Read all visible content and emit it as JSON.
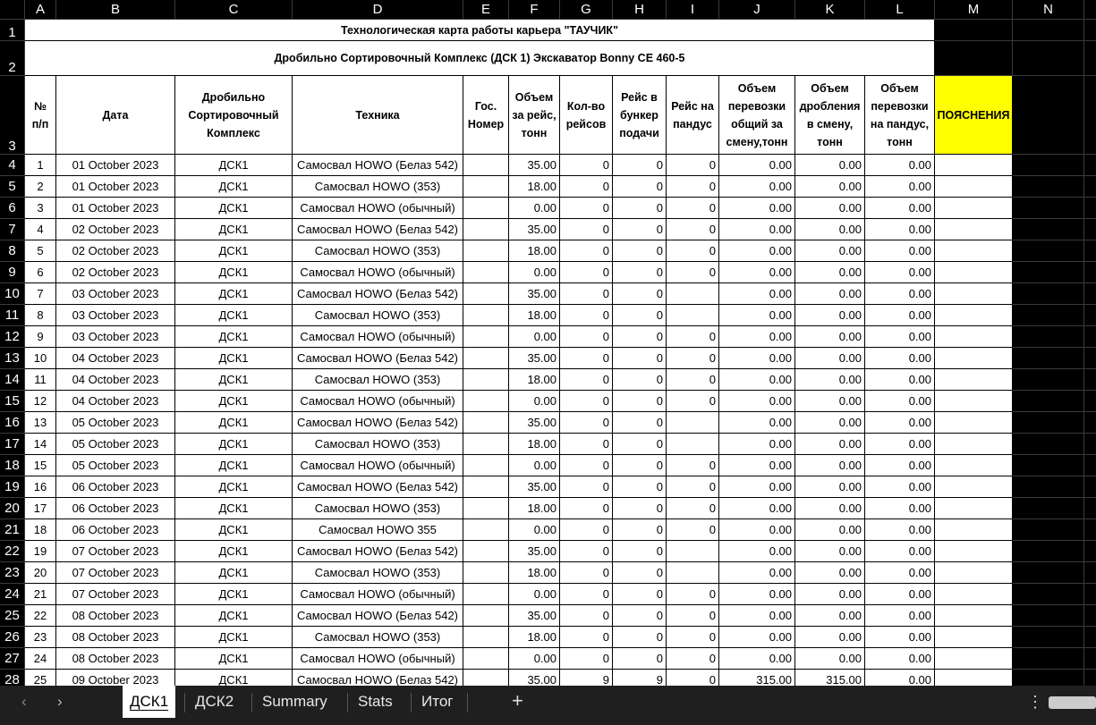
{
  "columns": [
    "A",
    "B",
    "C",
    "D",
    "E",
    "F",
    "G",
    "H",
    "I",
    "J",
    "K",
    "L",
    "M",
    "N"
  ],
  "row_numbers": [
    "1",
    "2",
    "3",
    "4",
    "5",
    "6",
    "7",
    "8",
    "9",
    "10",
    "11",
    "12",
    "13",
    "14",
    "15",
    "16",
    "17",
    "18",
    "19",
    "20",
    "21",
    "22",
    "23",
    "24",
    "25",
    "26",
    "27",
    "28"
  ],
  "title": "Технологическая карта работы карьера \"ТАУЧИК\"",
  "subtitle": "Дробильно Сортировочный Комплекс (ДСК 1) Экскаватор Bonny CE 460-5",
  "headers": [
    "№\nп/п",
    "Дата",
    "Дробильно\nСортировочный\nКомплекс",
    "Техника",
    "Гос.\nНомер",
    "Объем\nза рейс,\nтонн",
    "Кол-во\nрейсов",
    "Рейс в\nбункер\nподачи",
    "Рейс на\nпандус",
    "Объем\nперевозки\nобщий за\nсмену,тонн",
    "Объем\nдробления\nв смену,\nтонн",
    "Объем\nперевозки\nна пандус,\nтонн",
    "ПОЯСНЕНИЯ"
  ],
  "rows": [
    [
      "1",
      "01 October 2023",
      "ДСК1",
      "Самосвал HOWO (Белаз 542)",
      null,
      "35.00",
      "0",
      "0",
      "0",
      "0.00",
      "0.00",
      "0.00"
    ],
    [
      "2",
      "01 October 2023",
      "ДСК1",
      "Самосвал HOWO (353)",
      null,
      "18.00",
      "0",
      "0",
      "0",
      "0.00",
      "0.00",
      "0.00"
    ],
    [
      "3",
      "01 October 2023",
      "ДСК1",
      "Самосвал HOWO (обычный)",
      null,
      "0.00",
      "0",
      "0",
      "0",
      "0.00",
      "0.00",
      "0.00"
    ],
    [
      "4",
      "02 October 2023",
      "ДСК1",
      "Самосвал HOWO (Белаз 542)",
      null,
      "35.00",
      "0",
      "0",
      "0",
      "0.00",
      "0.00",
      "0.00"
    ],
    [
      "5",
      "02 October 2023",
      "ДСК1",
      "Самосвал HOWO (353)",
      null,
      "18.00",
      "0",
      "0",
      "0",
      "0.00",
      "0.00",
      "0.00"
    ],
    [
      "6",
      "02 October 2023",
      "ДСК1",
      "Самосвал HOWO (обычный)",
      null,
      "0.00",
      "0",
      "0",
      "0",
      "0.00",
      "0.00",
      "0.00"
    ],
    [
      "7",
      "03 October 2023",
      "ДСК1",
      "Самосвал HOWO (Белаз 542)",
      null,
      "35.00",
      "0",
      "0",
      null,
      "0.00",
      "0.00",
      "0.00"
    ],
    [
      "8",
      "03 October 2023",
      "ДСК1",
      "Самосвал HOWO (353)",
      null,
      "18.00",
      "0",
      "0",
      null,
      "0.00",
      "0.00",
      "0.00"
    ],
    [
      "9",
      "03 October 2023",
      "ДСК1",
      "Самосвал HOWO (обычный)",
      null,
      "0.00",
      "0",
      "0",
      "0",
      "0.00",
      "0.00",
      "0.00"
    ],
    [
      "10",
      "04 October 2023",
      "ДСК1",
      "Самосвал HOWO (Белаз 542)",
      null,
      "35.00",
      "0",
      "0",
      "0",
      "0.00",
      "0.00",
      "0.00"
    ],
    [
      "11",
      "04 October 2023",
      "ДСК1",
      "Самосвал HOWO (353)",
      null,
      "18.00",
      "0",
      "0",
      "0",
      "0.00",
      "0.00",
      "0.00"
    ],
    [
      "12",
      "04 October 2023",
      "ДСК1",
      "Самосвал HOWO (обычный)",
      null,
      "0.00",
      "0",
      "0",
      "0",
      "0.00",
      "0.00",
      "0.00"
    ],
    [
      "13",
      "05 October 2023",
      "ДСК1",
      "Самосвал HOWO (Белаз 542)",
      null,
      "35.00",
      "0",
      "0",
      null,
      "0.00",
      "0.00",
      "0.00"
    ],
    [
      "14",
      "05 October 2023",
      "ДСК1",
      "Самосвал HOWO (353)",
      null,
      "18.00",
      "0",
      "0",
      null,
      "0.00",
      "0.00",
      "0.00"
    ],
    [
      "15",
      "05 October 2023",
      "ДСК1",
      "Самосвал HOWO (обычный)",
      null,
      "0.00",
      "0",
      "0",
      "0",
      "0.00",
      "0.00",
      "0.00"
    ],
    [
      "16",
      "06 October 2023",
      "ДСК1",
      "Самосвал HOWO (Белаз 542)",
      null,
      "35.00",
      "0",
      "0",
      "0",
      "0.00",
      "0.00",
      "0.00"
    ],
    [
      "17",
      "06 October 2023",
      "ДСК1",
      "Самосвал HOWO (353)",
      null,
      "18.00",
      "0",
      "0",
      "0",
      "0.00",
      "0.00",
      "0.00"
    ],
    [
      "18",
      "06 October 2023",
      "ДСК1",
      "Самосвал HOWO 355",
      null,
      "0.00",
      "0",
      "0",
      "0",
      "0.00",
      "0.00",
      "0.00"
    ],
    [
      "19",
      "07 October 2023",
      "ДСК1",
      "Самосвал HOWO (Белаз 542)",
      null,
      "35.00",
      "0",
      "0",
      null,
      "0.00",
      "0.00",
      "0.00"
    ],
    [
      "20",
      "07 October 2023",
      "ДСК1",
      "Самосвал HOWO (353)",
      null,
      "18.00",
      "0",
      "0",
      null,
      "0.00",
      "0.00",
      "0.00"
    ],
    [
      "21",
      "07 October 2023",
      "ДСК1",
      "Самосвал HOWO (обычный)",
      null,
      "0.00",
      "0",
      "0",
      "0",
      "0.00",
      "0.00",
      "0.00"
    ],
    [
      "22",
      "08 October 2023",
      "ДСК1",
      "Самосвал HOWO (Белаз 542)",
      null,
      "35.00",
      "0",
      "0",
      "0",
      "0.00",
      "0.00",
      "0.00"
    ],
    [
      "23",
      "08 October 2023",
      "ДСК1",
      "Самосвал HOWO (353)",
      null,
      "18.00",
      "0",
      "0",
      "0",
      "0.00",
      "0.00",
      "0.00"
    ],
    [
      "24",
      "08 October 2023",
      "ДСК1",
      "Самосвал HOWO (обычный)",
      null,
      "0.00",
      "0",
      "0",
      "0",
      "0.00",
      "0.00",
      "0.00"
    ],
    [
      "25",
      "09 October 2023",
      "ДСК1",
      "Самосвал HOWO (Белаз 542)",
      null,
      "35.00",
      "9",
      "9",
      "0",
      "315.00",
      "315.00",
      "0.00"
    ]
  ],
  "tabs": [
    "ДСК1",
    "ДСК2",
    "Summary",
    "Stats",
    "Итог"
  ]
}
